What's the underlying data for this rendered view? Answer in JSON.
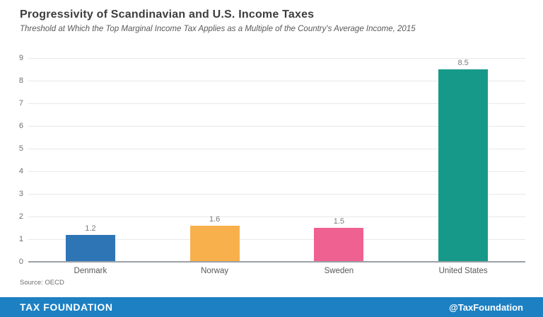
{
  "chart_data": {
    "type": "bar",
    "title": "Progressivity of Scandinavian and U.S. Income Taxes",
    "subtitle": "Threshold at Which the Top Marginal Income Tax Applies as a Multiple of the Country's Average Income, 2015",
    "categories": [
      "Denmark",
      "Norway",
      "Sweden",
      "United States"
    ],
    "values": [
      1.2,
      1.6,
      1.5,
      8.5
    ],
    "value_labels": [
      "1.2",
      "1.6",
      "1.5",
      "8.5"
    ],
    "bar_colors": [
      "#2e75b6",
      "#f8b04c",
      "#ef6190",
      "#17998a"
    ],
    "xlabel": "",
    "ylabel": "",
    "ylim": [
      0,
      9
    ],
    "ytick_step": 1,
    "grid": "horizontal",
    "gridline_color": "#e8e8e8",
    "baseline_color": "#9aa0a6",
    "source": "Source: OECD"
  },
  "footer": {
    "brand": "TAX FOUNDATION",
    "handle": "@TaxFoundation",
    "background": "#1d80c3"
  }
}
